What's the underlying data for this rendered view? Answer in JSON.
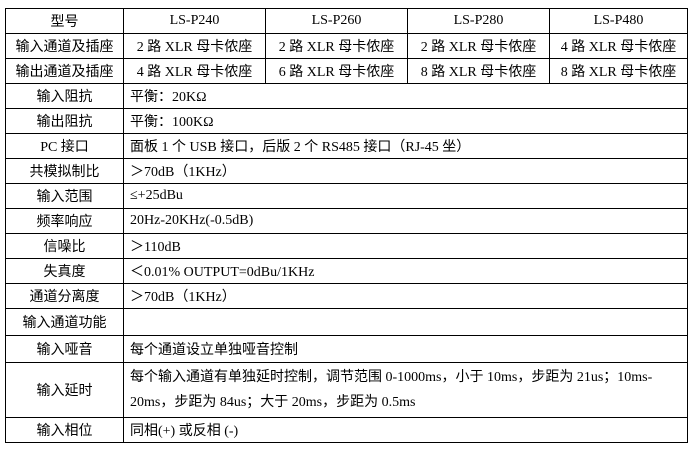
{
  "header": {
    "label": "型号",
    "models": [
      "LS-P240",
      "LS-P260",
      "LS-P280",
      "LS-P480"
    ]
  },
  "channel_rows": [
    {
      "label": "输入通道及插座",
      "values": [
        "2 路 XLR 母卡侬座",
        "2 路 XLR 母卡侬座",
        "2 路 XLR 母卡侬座",
        "4 路 XLR 母卡侬座"
      ]
    },
    {
      "label": "输出通道及插座",
      "values": [
        "4 路 XLR 母卡侬座",
        "6 路 XLR 母卡侬座",
        "8 路 XLR 母卡侬座",
        "8 路 XLR 母卡侬座"
      ]
    }
  ],
  "spec_rows": [
    {
      "label": "输入阻抗",
      "value": "平衡：20KΩ"
    },
    {
      "label": "输出阻抗",
      "value": "平衡：100KΩ"
    },
    {
      "label": "PC 接口",
      "value": "面板 1 个 USB 接口，后版 2 个 RS485 接口（RJ-45 坐）"
    },
    {
      "label": "共模拟制比",
      "value": "＞70dB（1KHz）"
    },
    {
      "label": "输入范围",
      "value": "≤+25dBu"
    },
    {
      "label": "频率响应",
      "value": "20Hz-20KHz(-0.5dB)"
    },
    {
      "label": "信噪比",
      "value": "＞110dB"
    },
    {
      "label": "失真度",
      "value": "＜0.01% OUTPUT=0dBu/1KHz"
    },
    {
      "label": "通道分离度",
      "value": "＞70dB（1KHz）"
    },
    {
      "label": "输入通道功能",
      "value": ""
    },
    {
      "label": "输入哑音",
      "value": "每个通道设立单独哑音控制"
    },
    {
      "label": "输入延时",
      "value": "每个输入通道有单独延时控制，调节范围 0-1000ms，小于 10ms，步距为 21us；10ms-20ms，步距为 84us；大于 20ms，步距为 0.5ms"
    },
    {
      "label": "输入相位",
      "value": "同相(+) 或反相 (-)"
    }
  ]
}
